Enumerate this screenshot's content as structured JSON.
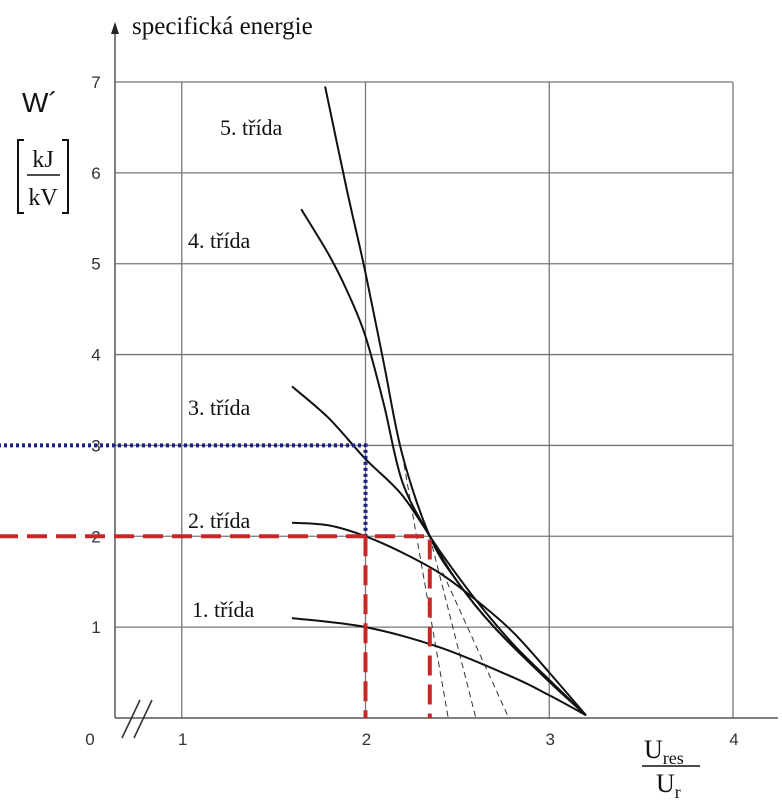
{
  "chart_data": {
    "type": "line",
    "title": "specifická energie",
    "ylabel_symbol": "W´",
    "ylabel_unit_num": "kJ",
    "ylabel_unit_den": "kV",
    "xlabel_num": "U",
    "xlabel_num_sub": "res",
    "xlabel_den": "U",
    "xlabel_den_sub": "r",
    "xlim": [
      0,
      4
    ],
    "ylim": [
      0,
      7
    ],
    "x_break": true,
    "x_ticks": [
      "0",
      "1",
      "2",
      "3",
      "4"
    ],
    "y_ticks": [
      "1",
      "2",
      "3",
      "4",
      "5",
      "6",
      "7"
    ],
    "grid": true,
    "series": [
      {
        "name": "1. třída",
        "x": [
          1.6,
          2.0,
          2.4,
          2.8,
          3.0,
          3.2
        ],
        "y": [
          1.1,
          1.0,
          0.78,
          0.45,
          0.25,
          0.03
        ]
      },
      {
        "name": "2. třída",
        "x": [
          1.6,
          1.8,
          2.0,
          2.2,
          2.4,
          2.6,
          2.8,
          3.0,
          3.2
        ],
        "y": [
          2.15,
          2.12,
          2.0,
          1.82,
          1.6,
          1.3,
          0.95,
          0.5,
          0.03
        ]
      },
      {
        "name": "3. třída",
        "x": [
          1.6,
          1.8,
          2.0,
          2.2,
          2.4,
          2.6,
          2.8,
          3.0,
          3.2
        ],
        "y": [
          3.65,
          3.3,
          2.85,
          2.45,
          1.85,
          1.3,
          0.82,
          0.42,
          0.03
        ]
      },
      {
        "name": "4. třída",
        "x": [
          1.65,
          1.8,
          1.9,
          2.0,
          2.1,
          2.2,
          2.35,
          2.5,
          2.7,
          3.0,
          3.2
        ],
        "y": [
          5.6,
          5.1,
          4.7,
          4.2,
          3.45,
          2.6,
          2.0,
          1.5,
          1.0,
          0.4,
          0.03
        ]
      },
      {
        "name": "5. třída",
        "x": [
          1.78,
          1.9,
          2.0,
          2.1,
          2.2,
          2.35,
          2.5,
          2.7,
          3.0,
          3.2
        ],
        "y": [
          6.95,
          5.8,
          4.9,
          3.9,
          2.9,
          2.0,
          1.5,
          1.0,
          0.4,
          0.03
        ]
      }
    ],
    "extrapolations": [
      {
        "x": [
          2.2,
          2.45
        ],
        "y": [
          2.9,
          0
        ]
      },
      {
        "x": [
          2.35,
          2.6
        ],
        "y": [
          2.0,
          0
        ]
      },
      {
        "x": [
          2.42,
          2.78
        ],
        "y": [
          1.6,
          0
        ]
      }
    ],
    "highlights": [
      {
        "color": "#1a237e",
        "style": "dotted",
        "x": [
          0,
          2.0,
          2.0
        ],
        "y": [
          3,
          3,
          2
        ]
      },
      {
        "color": "#c62828",
        "style": "dashed",
        "x": [
          0,
          2.35,
          2.35
        ],
        "y": [
          2,
          2,
          0
        ]
      },
      {
        "color": "#c62828",
        "style": "dashed",
        "x": [
          2.0,
          2.0
        ],
        "y": [
          2,
          0
        ]
      }
    ]
  }
}
